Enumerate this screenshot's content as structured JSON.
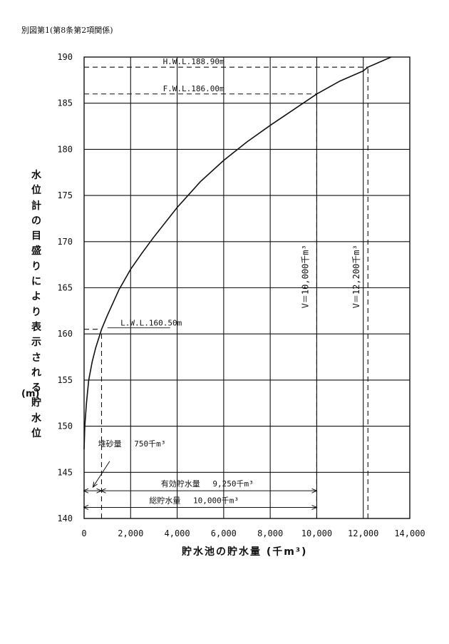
{
  "header": {
    "text": "別図第1(第8条第2項関係)"
  },
  "chart_data": {
    "type": "line",
    "title": "",
    "xlabel": "貯水池の貯水量 (千m³)",
    "ylabel": "水位計の目盛りにより表示される貯水位",
    "ylabel_unit": "(m)",
    "xlim": [
      0,
      14000
    ],
    "ylim": [
      140,
      190
    ],
    "x_ticks": [
      "0",
      "2,000",
      "4,000",
      "6,000",
      "8,000",
      "10,000",
      "12,000",
      "14,000"
    ],
    "y_ticks": [
      "140",
      "145",
      "150",
      "155",
      "160",
      "165",
      "170",
      "175",
      "180",
      "185",
      "190"
    ],
    "grid": true,
    "series": [
      {
        "x": [
          0,
          30,
          100,
          200,
          350,
          500,
          750,
          1000,
          1500,
          2000,
          2500,
          3000,
          4000,
          5000,
          6000,
          7000,
          8000,
          9000,
          10000,
          11000,
          12000,
          12200,
          13200
        ],
        "y": [
          147.5,
          150.0,
          152.5,
          155.0,
          157.0,
          158.5,
          160.5,
          162.0,
          164.8,
          167.0,
          168.8,
          170.5,
          173.7,
          176.5,
          178.8,
          180.8,
          182.6,
          184.3,
          186.0,
          187.4,
          188.5,
          188.9,
          190.0
        ]
      }
    ],
    "levels": [
      {
        "label": "H.W.L.188.90m",
        "y": 188.9,
        "x_start": 0,
        "x_end": 12200
      },
      {
        "label": "F.W.L.186.00m",
        "y": 186.0,
        "x_start": 0,
        "x_end": 10000
      },
      {
        "label": "L.W.L.160.50m",
        "y": 160.5,
        "x_start": 0,
        "x_end": 750
      }
    ],
    "verticals": [
      {
        "x": 750,
        "y_from": 140,
        "y_to": 160.5
      },
      {
        "x": 10000,
        "y_from": 140,
        "y_to": 186.0,
        "label": "V＝10,000千m³"
      },
      {
        "x": 12200,
        "y_from": 140,
        "y_to": 188.9,
        "label": "V＝12,200千m³"
      }
    ],
    "annotations": [
      {
        "label": "堆砂量",
        "value": "750千m³"
      },
      {
        "label": "有効貯水量",
        "value": "9,250千m³",
        "x_from": 750,
        "x_to": 10000,
        "y": 143.0
      },
      {
        "label": "総貯水量",
        "value": "10,000千m³",
        "x_from": 0,
        "x_to": 10000,
        "y": 141.2
      }
    ]
  }
}
